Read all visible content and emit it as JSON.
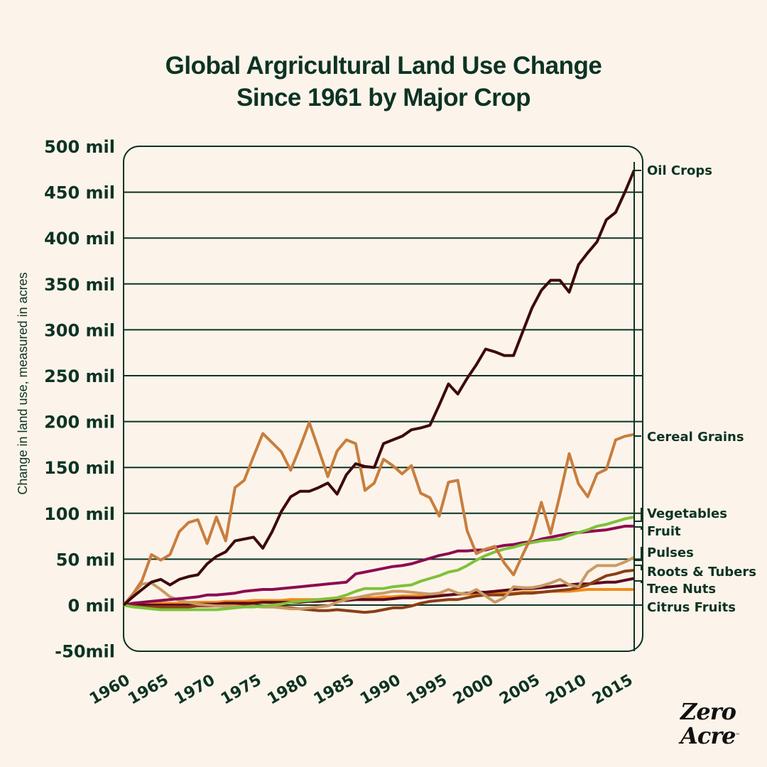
{
  "title": {
    "line1": "Global Argricultural Land Use Change",
    "line2": "Since 1961 by Major Crop"
  },
  "logo": {
    "line1": "Zero",
    "line2": "Acre",
    "trademark": "™"
  },
  "colors": {
    "background": "#fcf4ea",
    "text": "#0d3324",
    "grid": "#0d3324"
  },
  "chart_data": {
    "type": "line",
    "title": "Global Argricultural Land Use Change Since 1961 by Major Crop",
    "xlabel": "",
    "ylabel": "Change in land use, measured in acres",
    "ylim": [
      -50,
      500
    ],
    "xlim": [
      1961,
      2016
    ],
    "grid": true,
    "legend": "right, inline labels at line ends",
    "y_ticks": [
      500,
      450,
      400,
      350,
      300,
      250,
      200,
      150,
      100,
      50,
      0,
      -50
    ],
    "y_tick_labels": [
      "500 mil",
      "450 mil",
      "400 mil",
      "350 mil",
      "300 mil",
      "250 mil",
      "200 mil",
      "150 mil",
      "100 mil",
      "50 mil",
      "0 mil",
      "-50mil"
    ],
    "x_tick_labels": [
      "1960",
      "1965",
      "1970",
      "1975",
      "1980",
      "1985",
      "1990",
      "1995",
      "2000",
      "2005",
      "2010",
      "2015"
    ],
    "x": [
      1961,
      1962,
      1963,
      1964,
      1965,
      1966,
      1967,
      1968,
      1969,
      1970,
      1971,
      1972,
      1973,
      1974,
      1975,
      1976,
      1977,
      1978,
      1979,
      1980,
      1981,
      1982,
      1983,
      1984,
      1985,
      1986,
      1987,
      1988,
      1989,
      1990,
      1991,
      1992,
      1993,
      1994,
      1995,
      1996,
      1997,
      1998,
      1999,
      2000,
      2001,
      2002,
      2003,
      2004,
      2005,
      2006,
      2007,
      2008,
      2009,
      2010,
      2011,
      2012,
      2013,
      2014,
      2015,
      2016
    ],
    "series": [
      {
        "name": "Oil Crops",
        "color": "#3d0a0a",
        "values": [
          0,
          9,
          17,
          25,
          28,
          22,
          28,
          31,
          33,
          45,
          53,
          58,
          70,
          72,
          74,
          62,
          80,
          102,
          118,
          124,
          124,
          128,
          133,
          121,
          142,
          154,
          151,
          150,
          176,
          180,
          184,
          191,
          193,
          196,
          218,
          241,
          230,
          247,
          262,
          279,
          276,
          272,
          272,
          298,
          324,
          343,
          354,
          354,
          341,
          371,
          384,
          396,
          420,
          428,
          450,
          474
        ]
      },
      {
        "name": "Cereal Grains",
        "color": "#c87e3e",
        "values": [
          0,
          12,
          27,
          55,
          49,
          55,
          80,
          90,
          93,
          67,
          96,
          70,
          128,
          136,
          162,
          187,
          177,
          167,
          147,
          172,
          199,
          170,
          140,
          168,
          180,
          176,
          125,
          133,
          159,
          152,
          143,
          152,
          122,
          117,
          97,
          134,
          136,
          81,
          56,
          61,
          64,
          46,
          33,
          55,
          76,
          112,
          78,
          120,
          165,
          132,
          118,
          143,
          148,
          180,
          184,
          186
        ]
      },
      {
        "name": "Vegetables",
        "color": "#7fc13a",
        "values": [
          0,
          -2,
          -3,
          -4,
          -5,
          -5,
          -5,
          -5,
          -5,
          -5,
          -5,
          -4,
          -3,
          -2,
          -2,
          -1,
          0,
          1,
          3,
          4,
          5,
          6,
          7,
          8,
          11,
          15,
          18,
          18,
          18,
          20,
          21,
          22,
          26,
          29,
          32,
          36,
          38,
          43,
          49,
          54,
          58,
          61,
          63,
          66,
          68,
          70,
          71,
          72,
          76,
          79,
          82,
          86,
          88,
          91,
          94,
          96
        ]
      },
      {
        "name": "Fruit",
        "color": "#8c0b52",
        "values": [
          0,
          2,
          3,
          4,
          5,
          6,
          7,
          8,
          9,
          11,
          11,
          12,
          13,
          15,
          16,
          17,
          17,
          18,
          19,
          20,
          21,
          22,
          23,
          24,
          25,
          34,
          36,
          38,
          40,
          42,
          43,
          45,
          48,
          51,
          54,
          56,
          59,
          59,
          60,
          60,
          63,
          65,
          66,
          68,
          69,
          72,
          74,
          76,
          78,
          79,
          80,
          81,
          82,
          84,
          86,
          86
        ]
      },
      {
        "name": "Pulses",
        "color": "#c99a66",
        "values": [
          0,
          12,
          23,
          24,
          17,
          9,
          5,
          3,
          1,
          0,
          -1,
          -1,
          -1,
          -2,
          -1,
          -2,
          -2,
          -3,
          -4,
          -4,
          -3,
          -2,
          -1,
          3,
          6,
          8,
          10,
          12,
          13,
          15,
          15,
          14,
          13,
          12,
          13,
          17,
          13,
          12,
          17,
          10,
          3,
          8,
          20,
          19,
          19,
          21,
          24,
          28,
          22,
          20,
          36,
          43,
          43,
          43,
          47,
          52
        ]
      },
      {
        "name": "Roots & Tubers",
        "color": "#8a3f16",
        "values": [
          0,
          -1,
          -2,
          -2,
          -2,
          -2,
          -2,
          -2,
          -1,
          -1,
          -1,
          -1,
          -1,
          -1,
          -1,
          -2,
          -2,
          -2,
          -3,
          -4,
          -5,
          -6,
          -6,
          -5,
          -6,
          -7,
          -8,
          -7,
          -5,
          -3,
          -3,
          -1,
          2,
          4,
          5,
          6,
          6,
          8,
          10,
          11,
          11,
          11,
          12,
          13,
          13,
          14,
          15,
          16,
          17,
          19,
          22,
          27,
          32,
          34,
          37,
          38
        ]
      },
      {
        "name": "Tree Nuts",
        "color": "#5c0a1e",
        "values": [
          0,
          0,
          0,
          0,
          0,
          0,
          0,
          0,
          1,
          1,
          1,
          2,
          2,
          2,
          2,
          3,
          3,
          3,
          3,
          3,
          4,
          4,
          5,
          5,
          5,
          6,
          6,
          6,
          6,
          7,
          8,
          8,
          8,
          9,
          10,
          11,
          12,
          13,
          14,
          14,
          15,
          16,
          17,
          18,
          18,
          19,
          20,
          21,
          22,
          23,
          23,
          24,
          25,
          25,
          27,
          29
        ]
      },
      {
        "name": "Citrus Fruits",
        "color": "#f08a1a",
        "values": [
          0,
          1,
          1,
          1,
          2,
          2,
          2,
          3,
          3,
          3,
          3,
          4,
          4,
          4,
          5,
          5,
          5,
          5,
          6,
          6,
          6,
          6,
          7,
          7,
          7,
          8,
          8,
          8,
          9,
          9,
          10,
          10,
          10,
          11,
          11,
          11,
          12,
          12,
          12,
          13,
          13,
          13,
          13,
          14,
          14,
          14,
          15,
          15,
          15,
          16,
          17,
          17,
          17,
          17,
          17,
          17
        ]
      }
    ],
    "legend_labels": [
      "Oil Crops",
      "Cereal Grains",
      "Vegetables",
      "Fruit",
      "Pulses",
      "Roots & Tubers",
      "Tree Nuts",
      "Citrus Fruits"
    ]
  }
}
